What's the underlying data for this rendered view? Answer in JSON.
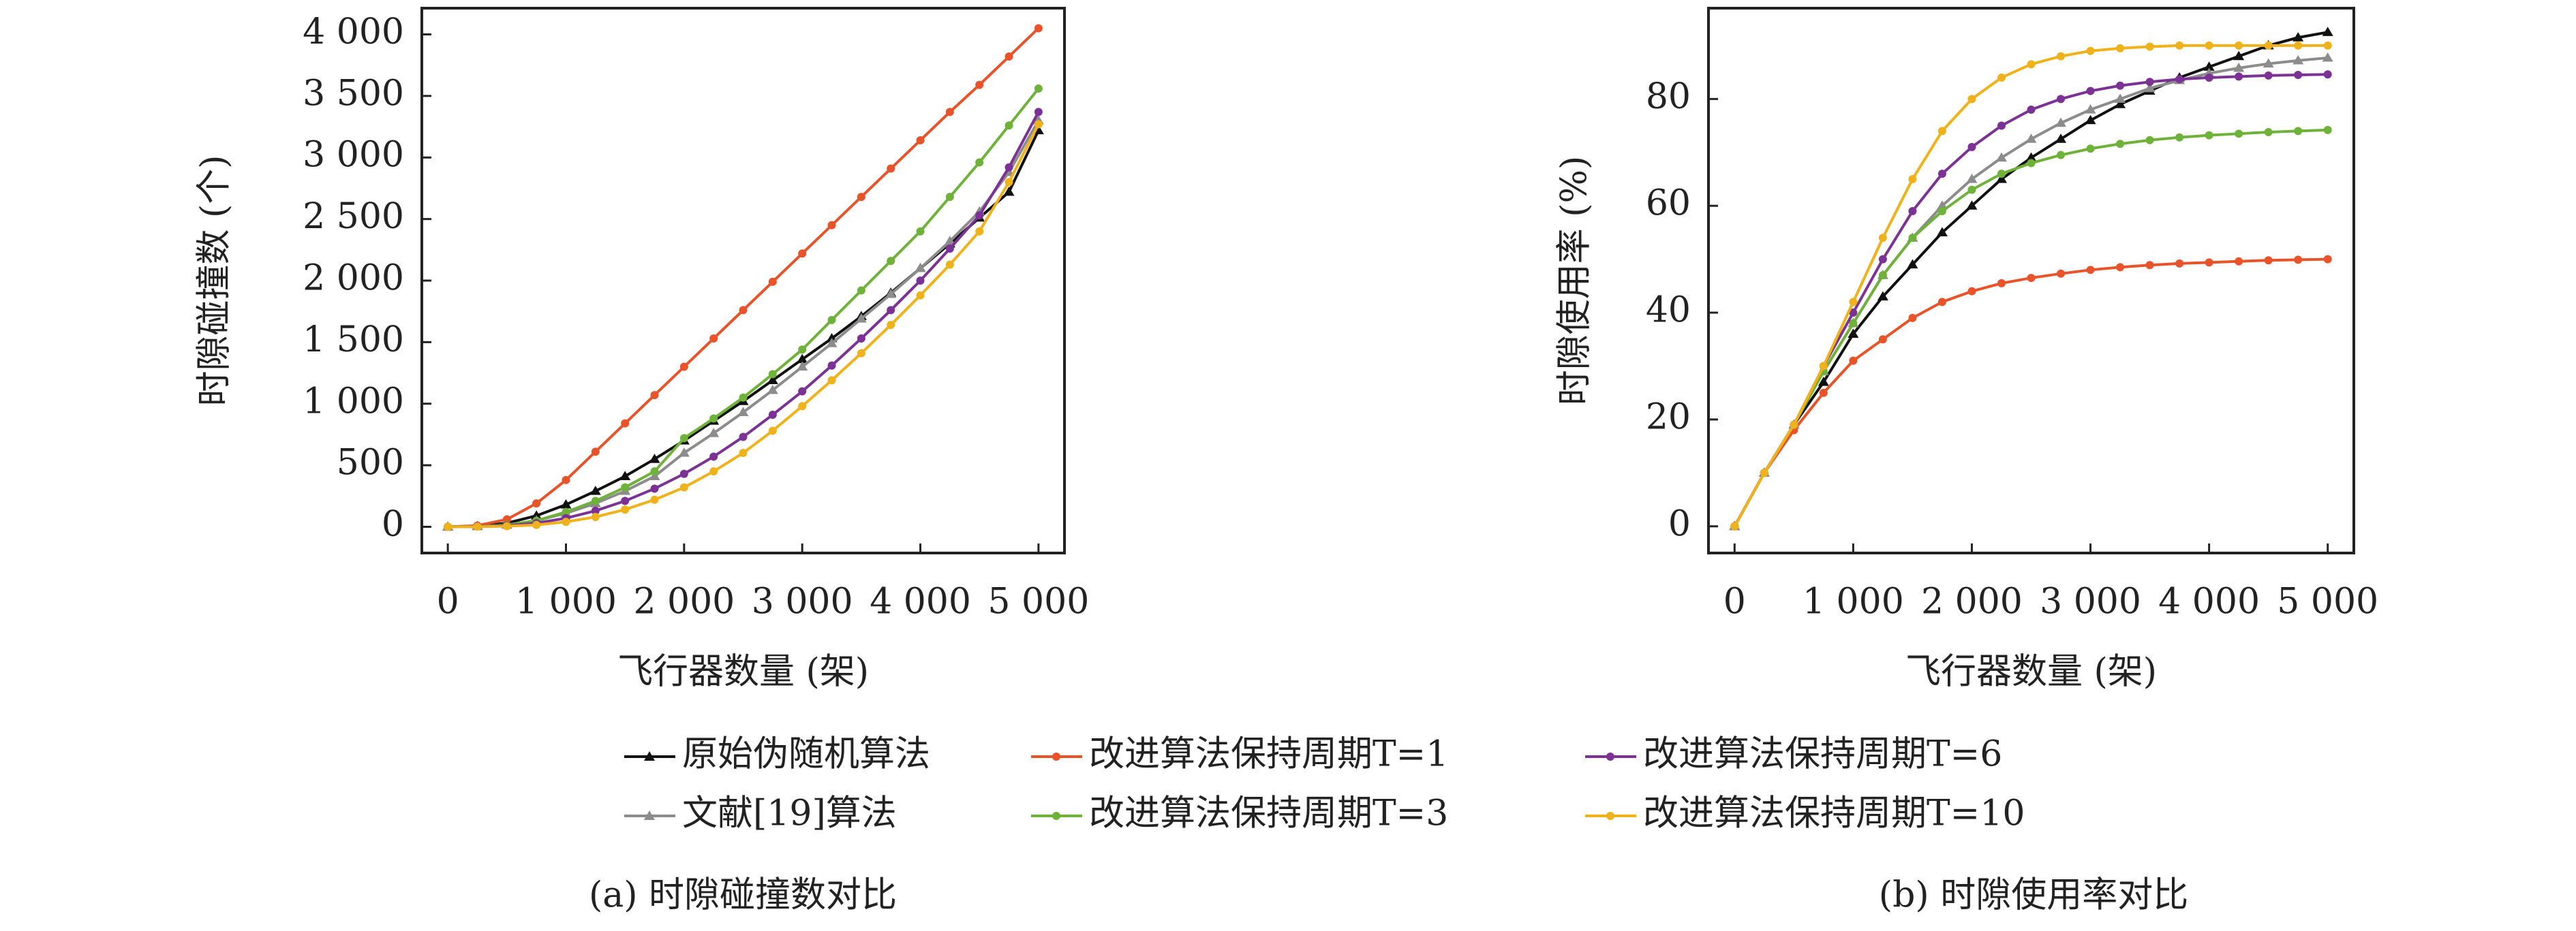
{
  "chart_data": [
    {
      "type": "line",
      "caption": "(a) 时隙碰撞数对比",
      "x_label": "飞行器数量 (架)",
      "y_label": "时隙碰撞数 (个)",
      "x": [
        0,
        250,
        500,
        750,
        1000,
        1250,
        1500,
        1750,
        2000,
        2250,
        2500,
        2750,
        3000,
        3250,
        3500,
        3750,
        4000,
        4250,
        4500,
        4750,
        5000
      ],
      "xlim": [
        -220,
        5220
      ],
      "ylim": [
        -213,
        4213
      ],
      "xticks": [
        0,
        {
          "value": 1000,
          "label": "1 000"
        },
        {
          "value": 2000,
          "label": "2 000"
        },
        {
          "value": 3000,
          "label": "3 000"
        },
        {
          "value": 4000,
          "label": "4 000"
        },
        {
          "value": 5000,
          "label": "5 000"
        }
      ],
      "yticks": [
        0,
        500,
        {
          "value": 1000,
          "label": "1 000"
        },
        {
          "value": 1500,
          "label": "1 500"
        },
        {
          "value": 2000,
          "label": "2 000"
        },
        {
          "value": 2500,
          "label": "2 500"
        },
        {
          "value": 3000,
          "label": "3 000"
        },
        {
          "value": 3500,
          "label": "3 500"
        },
        {
          "value": 4000,
          "label": "4 000"
        }
      ],
      "series": [
        {
          "name": "原始伪随机算法",
          "color": "#111111",
          "marker": "triangle",
          "values": [
            0,
            5,
            30,
            90,
            180,
            290,
            410,
            550,
            700,
            860,
            1020,
            1190,
            1360,
            1530,
            1710,
            1900,
            2100,
            2300,
            2510,
            2720,
            3220
          ]
        },
        {
          "name": "文献[19]算法",
          "color": "#8c8c8c",
          "marker": "triangle",
          "values": [
            0,
            3,
            15,
            50,
            110,
            190,
            290,
            410,
            600,
            760,
            930,
            1110,
            1300,
            1490,
            1690,
            1890,
            2100,
            2320,
            2560,
            2880,
            3300
          ]
        },
        {
          "name": "改进算法保持周期T=1",
          "color": "#e8532a",
          "marker": "circle",
          "values": [
            0,
            10,
            60,
            190,
            380,
            610,
            840,
            1070,
            1300,
            1530,
            1760,
            1990,
            2220,
            2450,
            2680,
            2910,
            3140,
            3370,
            3590,
            3820,
            4050
          ]
        },
        {
          "name": "改进算法保持周期T=3",
          "color": "#6fb23a",
          "marker": "circle",
          "values": [
            0,
            3,
            15,
            50,
            120,
            210,
            320,
            450,
            720,
            880,
            1050,
            1240,
            1440,
            1680,
            1920,
            2160,
            2400,
            2680,
            2960,
            3260,
            3560
          ]
        },
        {
          "name": "改进算法保持周期T=6",
          "color": "#7b3294",
          "marker": "circle",
          "values": [
            0,
            2,
            10,
            30,
            70,
            130,
            210,
            310,
            430,
            570,
            730,
            910,
            1100,
            1310,
            1530,
            1760,
            2000,
            2260,
            2530,
            2920,
            3370
          ]
        },
        {
          "name": "改进算法保持周期T=10",
          "color": "#f0b21a",
          "marker": "circle",
          "values": [
            0,
            1,
            5,
            15,
            40,
            80,
            140,
            220,
            320,
            450,
            600,
            780,
            980,
            1190,
            1410,
            1640,
            1880,
            2130,
            2400,
            2800,
            3270
          ]
        }
      ]
    },
    {
      "type": "line",
      "caption": "(b) 时隙使用率对比",
      "x_label": "飞行器数量 (架)",
      "y_label": "时隙使用率 (%)",
      "x": [
        0,
        250,
        500,
        750,
        1000,
        1250,
        1500,
        1750,
        2000,
        2250,
        2500,
        2750,
        3000,
        3250,
        3500,
        3750,
        4000,
        4250,
        4500,
        4750,
        5000
      ],
      "xlim": [
        -220,
        5220
      ],
      "ylim": [
        -5,
        97
      ],
      "xticks": [
        0,
        {
          "value": 1000,
          "label": "1 000"
        },
        {
          "value": 2000,
          "label": "2 000"
        },
        {
          "value": 3000,
          "label": "3 000"
        },
        {
          "value": 4000,
          "label": "4 000"
        },
        {
          "value": 5000,
          "label": "5 000"
        }
      ],
      "yticks": [
        0,
        20,
        40,
        60,
        80
      ],
      "series": [
        {
          "color": "#111111",
          "marker": "triangle",
          "values": [
            0,
            10,
            19,
            27,
            36,
            43,
            49,
            55,
            60,
            65,
            69,
            72.5,
            76,
            79,
            81.5,
            84,
            86,
            88,
            90,
            91.5,
            92.5
          ]
        },
        {
          "color": "#8c8c8c",
          "marker": "triangle",
          "values": [
            0,
            10,
            19,
            29,
            38,
            47,
            54,
            60,
            65,
            69,
            72.5,
            75.5,
            78,
            80,
            82,
            83.5,
            84.8,
            85.8,
            86.6,
            87.2,
            87.7
          ]
        },
        {
          "color": "#e8532a",
          "marker": "circle",
          "values": [
            0,
            10,
            18,
            25,
            31,
            35,
            39,
            42,
            44,
            45.5,
            46.5,
            47.3,
            48,
            48.5,
            48.9,
            49.2,
            49.4,
            49.6,
            49.8,
            49.9,
            50
          ]
        },
        {
          "color": "#6fb23a",
          "marker": "circle",
          "values": [
            0,
            10,
            19,
            29,
            38,
            47,
            54,
            59,
            63,
            66,
            68,
            69.5,
            70.7,
            71.6,
            72.3,
            72.8,
            73.2,
            73.5,
            73.8,
            74,
            74.2
          ]
        },
        {
          "color": "#7b3294",
          "marker": "circle",
          "values": [
            0,
            10,
            19,
            30,
            40,
            50,
            59,
            66,
            71,
            75,
            78,
            80,
            81.5,
            82.5,
            83.2,
            83.7,
            84,
            84.2,
            84.4,
            84.5,
            84.6
          ]
        },
        {
          "color": "#f0b21a",
          "marker": "circle",
          "values": [
            0,
            10,
            19,
            30,
            42,
            54,
            65,
            74,
            80,
            84,
            86.5,
            88,
            89,
            89.5,
            89.8,
            90,
            90,
            90,
            90,
            90,
            90
          ]
        }
      ]
    }
  ]
}
